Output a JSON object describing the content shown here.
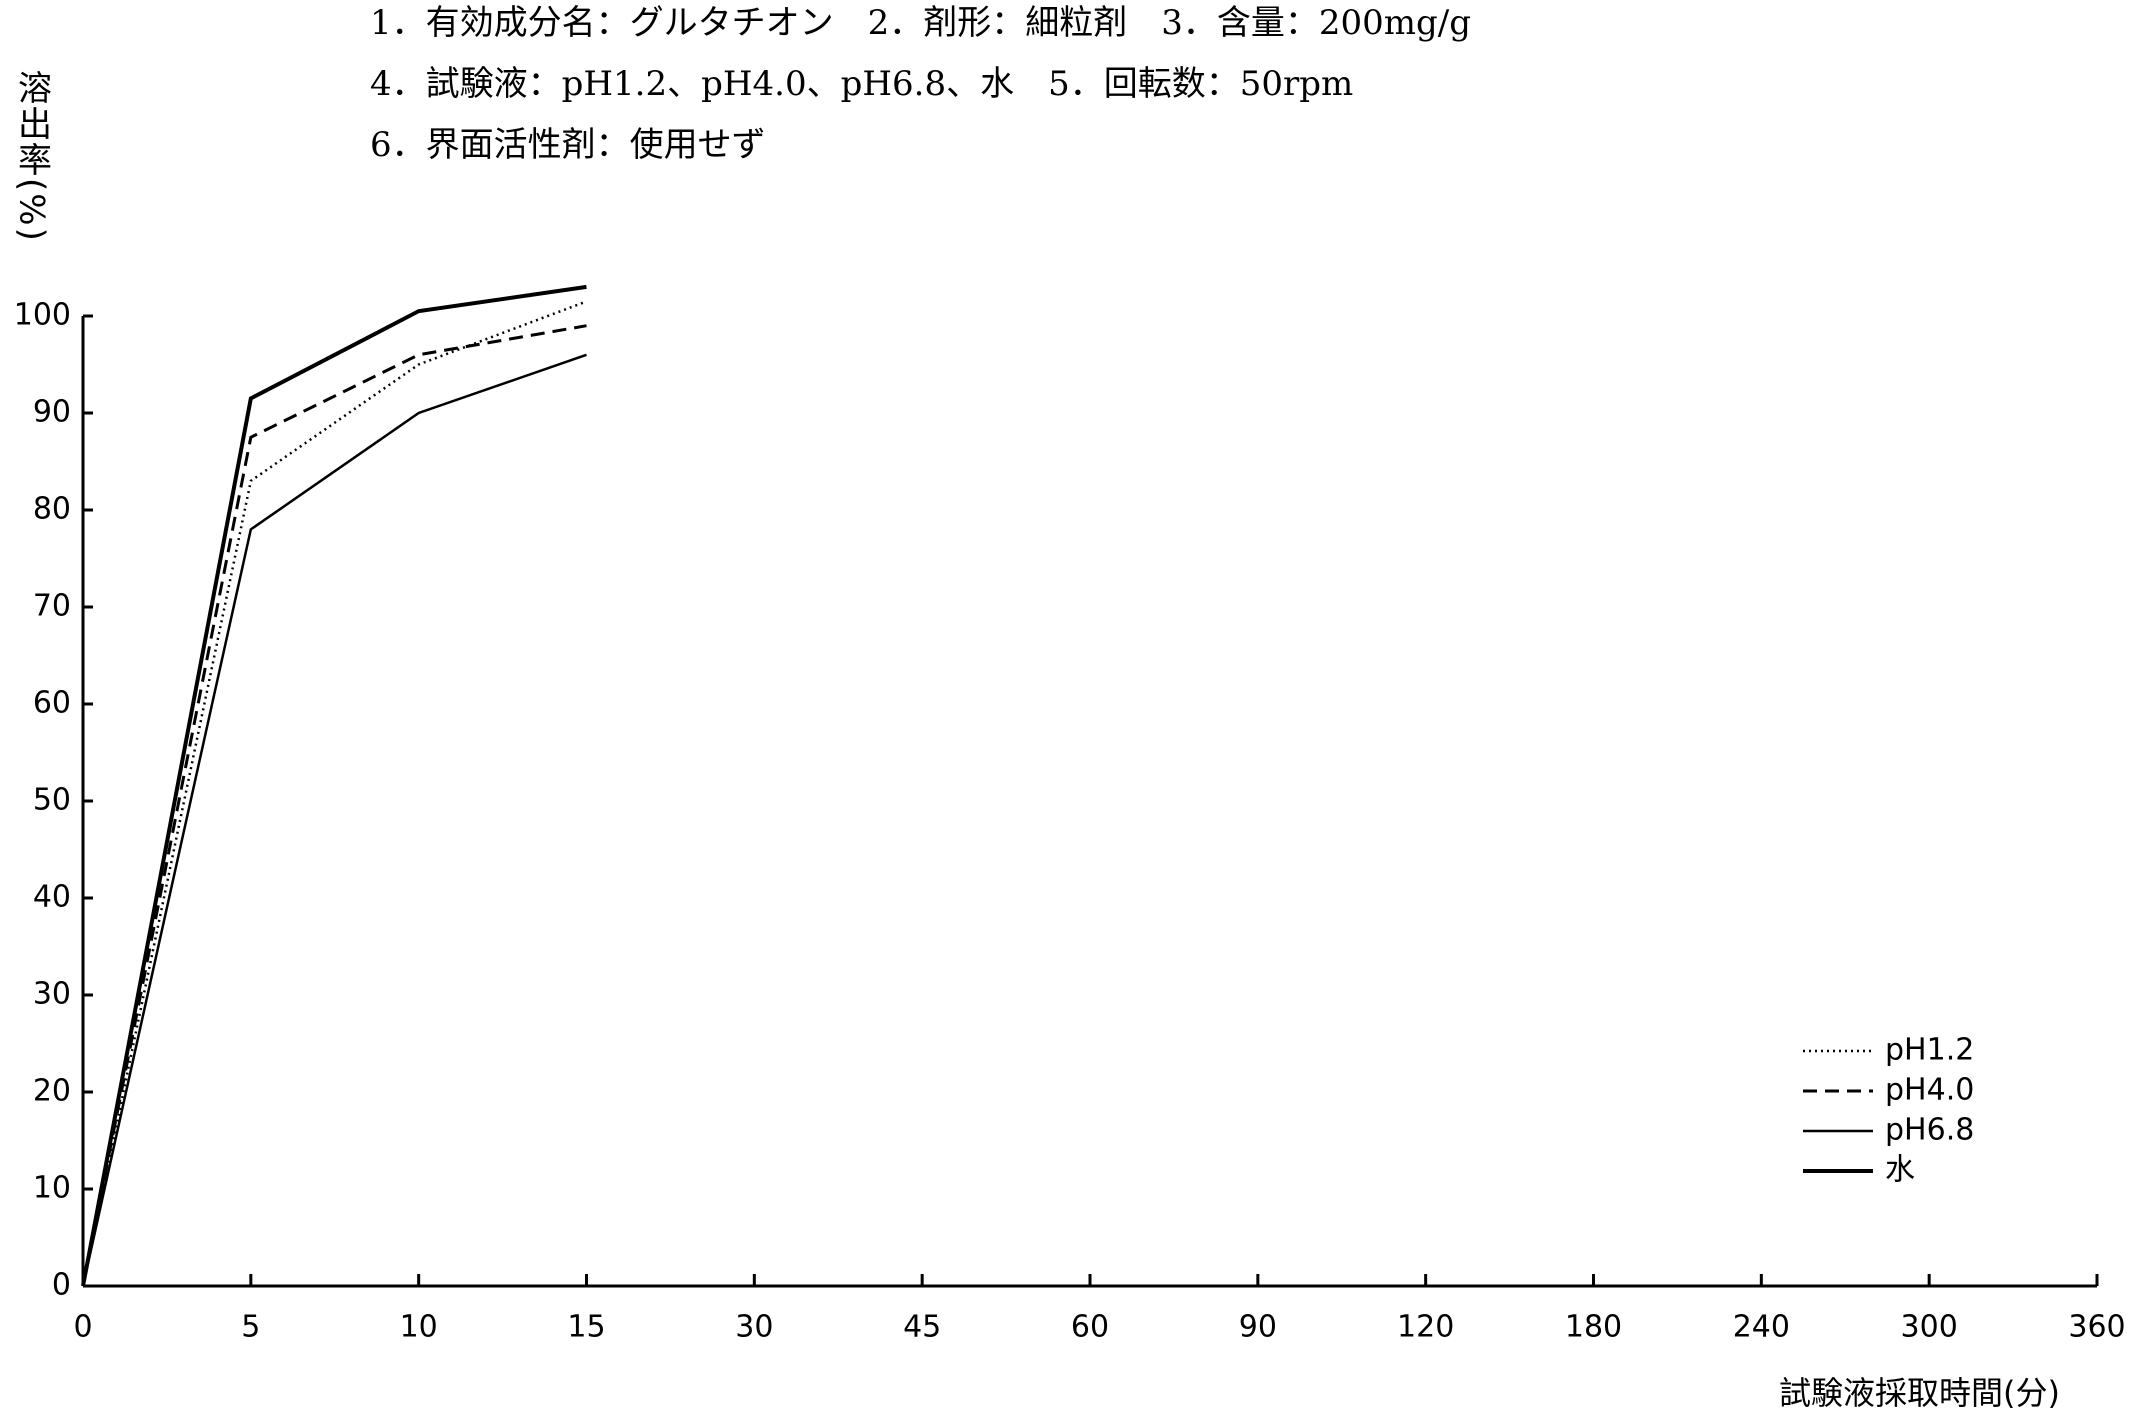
{
  "chart_data": {
    "type": "line",
    "title_lines": [
      "1．有効成分名：グルタチオン　2．剤形：細粒剤　3．含量：200mg/g",
      "4．試験液：pH1.2、pH4.0、pH6.8、水　5．回転数：50rpm",
      "6．界面活性剤：使用せず"
    ],
    "y_label": "溶出率(%)",
    "x_label": "試験液採取時間(分)",
    "categories": [
      0,
      5,
      10,
      15,
      30,
      45,
      60,
      90,
      120,
      180,
      240,
      300,
      360
    ],
    "series": [
      {
        "name": "pH1.2",
        "color": "#000000",
        "style": "dotted",
        "values": [
          0,
          83,
          95,
          101.5,
          null,
          null,
          null,
          null,
          null,
          null,
          null,
          null,
          null
        ]
      },
      {
        "name": "pH4.0",
        "color": "#000000",
        "style": "dashed",
        "values": [
          0,
          87.5,
          96,
          99,
          null,
          null,
          null,
          null,
          null,
          null,
          null,
          null,
          null
        ]
      },
      {
        "name": "pH6.8",
        "color": "#000000",
        "style": "solid",
        "values": [
          0,
          78,
          90,
          96,
          null,
          null,
          null,
          null,
          null,
          null,
          null,
          null,
          null
        ]
      },
      {
        "name": "水",
        "color": "#000000",
        "style": "bold",
        "values": [
          0,
          91.5,
          100.5,
          103,
          null,
          null,
          null,
          null,
          null,
          null,
          null,
          null,
          null
        ]
      }
    ],
    "ylim": [
      0,
      100
    ],
    "yticks": [
      0,
      10,
      20,
      30,
      40,
      50,
      60,
      70,
      80,
      90,
      100
    ],
    "grid": false,
    "legend": "lower right"
  }
}
